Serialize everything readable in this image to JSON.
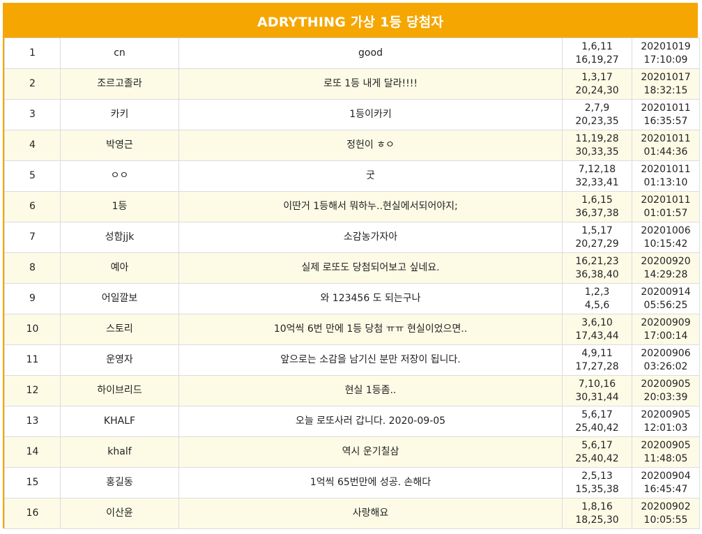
{
  "header": {
    "title": "ADRYTHING 가상 1등 당첨자"
  },
  "colors": {
    "accent": "#f5a600",
    "row_alt": "#fdfbe6"
  },
  "rows": [
    {
      "no": "1",
      "name": "cn",
      "message": "good",
      "nums1": "1,6,11",
      "nums2": "16,19,27",
      "date": "20201019",
      "time": "17:10:09"
    },
    {
      "no": "2",
      "name": "조르고졸라",
      "message": "로또 1등 내게 달라!!!!",
      "nums1": "1,3,17",
      "nums2": "20,24,30",
      "date": "20201017",
      "time": "18:32:15"
    },
    {
      "no": "3",
      "name": "카키",
      "message": "1등이카키",
      "nums1": "2,7,9",
      "nums2": "20,23,35",
      "date": "20201011",
      "time": "16:35:57"
    },
    {
      "no": "4",
      "name": "박영근",
      "message": "정헌이 ㅎㅇ",
      "nums1": "11,19,28",
      "nums2": "30,33,35",
      "date": "20201011",
      "time": "01:44:36"
    },
    {
      "no": "5",
      "name": "ㅇㅇ",
      "message": "굿",
      "nums1": "7,12,18",
      "nums2": "32,33,41",
      "date": "20201011",
      "time": "01:13:10"
    },
    {
      "no": "6",
      "name": "1등",
      "message": "이딴거 1등해서 뭐하누..현실에서되어야지;",
      "nums1": "1,6,15",
      "nums2": "36,37,38",
      "date": "20201011",
      "time": "01:01:57"
    },
    {
      "no": "7",
      "name": "성함jjk",
      "message": "소감농가자아",
      "nums1": "1,5,17",
      "nums2": "20,27,29",
      "date": "20201006",
      "time": "10:15:42"
    },
    {
      "no": "8",
      "name": "예아",
      "message": "실제 로또도 당첨되어보고 싶네요.",
      "nums1": "16,21,23",
      "nums2": "36,38,40",
      "date": "20200920",
      "time": "14:29:28"
    },
    {
      "no": "9",
      "name": "어일깔보",
      "message": "와 123456 도 되는구나",
      "nums1": "1,2,3",
      "nums2": "4,5,6",
      "date": "20200914",
      "time": "05:56:25"
    },
    {
      "no": "10",
      "name": "스토리",
      "message": "10억씩 6번 만에 1등 당첨 ㅠㅠ 현실이었으면..",
      "nums1": "3,6,10",
      "nums2": "17,43,44",
      "date": "20200909",
      "time": "17:00:14"
    },
    {
      "no": "11",
      "name": "운영자",
      "message": "앞으로는 소감을 남기신 분만 저장이 됩니다.",
      "nums1": "4,9,11",
      "nums2": "17,27,28",
      "date": "20200906",
      "time": "03:26:02"
    },
    {
      "no": "12",
      "name": "하이브리드",
      "message": "현실 1등좀..",
      "nums1": "7,10,16",
      "nums2": "30,31,44",
      "date": "20200905",
      "time": "20:03:39"
    },
    {
      "no": "13",
      "name": "KHALF",
      "message": "오늘 로또사러 갑니다. 2020-09-05",
      "nums1": "5,6,17",
      "nums2": "25,40,42",
      "date": "20200905",
      "time": "12:01:03"
    },
    {
      "no": "14",
      "name": "khalf",
      "message": "역시 운기칠삼",
      "nums1": "5,6,17",
      "nums2": "25,40,42",
      "date": "20200905",
      "time": "11:48:05"
    },
    {
      "no": "15",
      "name": "홍길동",
      "message": "1억씩 65번만에 성공. 손해다",
      "nums1": "2,5,13",
      "nums2": "15,35,38",
      "date": "20200904",
      "time": "16:45:47"
    },
    {
      "no": "16",
      "name": "이산윤",
      "message": "사랑해요",
      "nums1": "1,8,16",
      "nums2": "18,25,30",
      "date": "20200902",
      "time": "10:05:55"
    }
  ]
}
